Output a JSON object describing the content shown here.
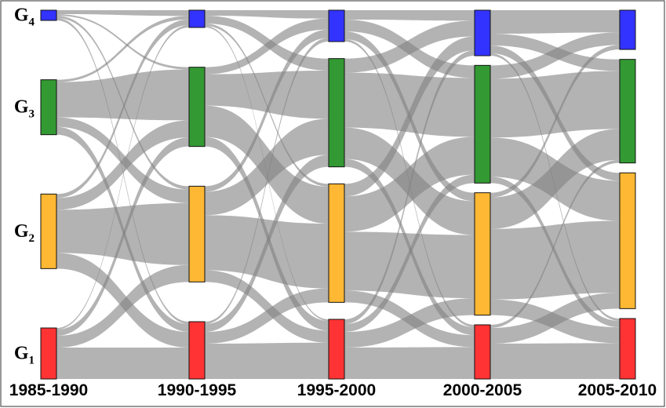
{
  "chart_data": {
    "type": "sankey",
    "groups": [
      {
        "letter": "G",
        "index": "1",
        "color": "#ff3333"
      },
      {
        "letter": "G",
        "index": "2",
        "color": "#ffb833"
      },
      {
        "letter": "G",
        "index": "3",
        "color": "#339933"
      },
      {
        "letter": "G",
        "index": "4",
        "color": "#3333ff"
      }
    ],
    "columns": [
      {
        "label": "1985-1990",
        "values": [
          65,
          95,
          70,
          13
        ]
      },
      {
        "label": "1990-1995",
        "values": [
          73,
          122,
          101,
          22
        ]
      },
      {
        "label": "1995-2000",
        "values": [
          76,
          151,
          138,
          40
        ]
      },
      {
        "label": "2000-2005",
        "values": [
          69,
          156,
          150,
          58
        ]
      },
      {
        "label": "2005-2010",
        "values": [
          77,
          173,
          132,
          50
        ]
      }
    ],
    "flows": [
      [
        [
          40,
          15,
          8,
          2
        ],
        [
          20,
          55,
          15,
          5
        ],
        [
          10,
          12,
          45,
          3
        ],
        [
          3,
          3,
          2,
          5
        ]
      ],
      [
        [
          45,
          15,
          10,
          3
        ],
        [
          15,
          70,
          30,
          7
        ],
        [
          12,
          40,
          40,
          9
        ],
        [
          2,
          3,
          10,
          7
        ]
      ],
      [
        [
          40,
          20,
          10,
          6
        ],
        [
          15,
          75,
          45,
          16
        ],
        [
          10,
          40,
          70,
          18
        ],
        [
          3,
          10,
          15,
          12
        ]
      ],
      [
        [
          45,
          20,
          4,
          0
        ],
        [
          20,
          90,
          40,
          6
        ],
        [
          8,
          50,
          75,
          17
        ],
        [
          3,
          10,
          15,
          30
        ]
      ]
    ],
    "link_color": "#808080"
  }
}
